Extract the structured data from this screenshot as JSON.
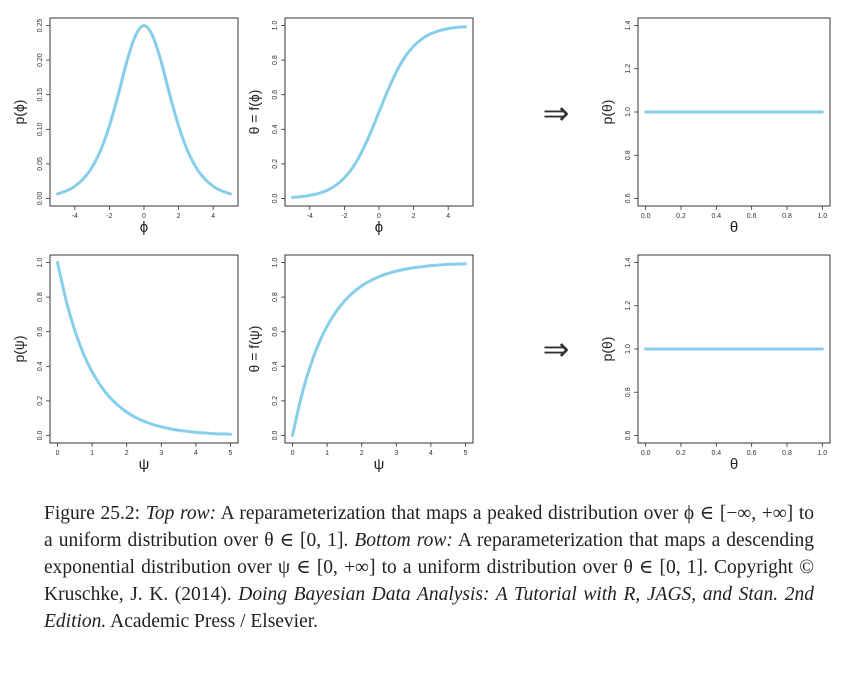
{
  "colors": {
    "curve": "#87ceeb",
    "axis": "#333333"
  },
  "arrow_symbol": "⇒",
  "chart_data": [
    {
      "type": "line",
      "id": "p-phi",
      "xlabel": "ϕ",
      "ylabel": "p(ϕ)",
      "xlim": [
        -5,
        5
      ],
      "ylim": [
        0,
        0.25
      ],
      "xticks": [
        -4,
        -2,
        0,
        2,
        4
      ],
      "xtick_labels": [
        "-4",
        "-2",
        "0",
        "2",
        "4"
      ],
      "yticks": [
        0,
        0.05,
        0.1,
        0.15,
        0.2,
        0.25
      ],
      "ytick_labels": [
        "0.00",
        "0.05",
        "0.10",
        "0.15",
        "0.20",
        "0.25"
      ],
      "series": [
        {
          "x": [
            -5,
            -4.5,
            -4,
            -3.5,
            -3,
            -2.5,
            -2,
            -1.5,
            -1,
            -0.5,
            0,
            0.5,
            1,
            1.5,
            2,
            2.5,
            3,
            3.5,
            4,
            4.5,
            5
          ],
          "y": [
            0.0066,
            0.0109,
            0.0177,
            0.0285,
            0.0452,
            0.0701,
            0.105,
            0.149,
            0.197,
            0.235,
            0.25,
            0.235,
            0.197,
            0.149,
            0.105,
            0.0701,
            0.0452,
            0.0285,
            0.0177,
            0.0109,
            0.0066
          ]
        }
      ]
    },
    {
      "type": "line",
      "id": "f-phi",
      "xlabel": "ϕ",
      "ylabel": "θ = f(ϕ)",
      "xlim": [
        -5,
        5
      ],
      "ylim": [
        0,
        1
      ],
      "xticks": [
        -4,
        -2,
        0,
        2,
        4
      ],
      "xtick_labels": [
        "-4",
        "-2",
        "0",
        "2",
        "4"
      ],
      "yticks": [
        0,
        0.2,
        0.4,
        0.6,
        0.8,
        1.0
      ],
      "ytick_labels": [
        "0.0",
        "0.2",
        "0.4",
        "0.6",
        "0.8",
        "1.0"
      ],
      "series": [
        {
          "x": [
            -5,
            -4.5,
            -4,
            -3.5,
            -3,
            -2.5,
            -2,
            -1.5,
            -1,
            -0.5,
            0,
            0.5,
            1,
            1.5,
            2,
            2.5,
            3,
            3.5,
            4,
            4.5,
            5
          ],
          "y": [
            0.0067,
            0.011,
            0.018,
            0.029,
            0.047,
            0.076,
            0.119,
            0.182,
            0.269,
            0.378,
            0.5,
            0.622,
            0.731,
            0.818,
            0.881,
            0.924,
            0.953,
            0.971,
            0.982,
            0.989,
            0.993
          ]
        }
      ]
    },
    {
      "type": "line",
      "id": "p-theta-top",
      "xlabel": "θ",
      "ylabel": "p(θ)",
      "xlim": [
        0,
        1
      ],
      "ylim": [
        0.6,
        1.4
      ],
      "xticks": [
        0,
        0.2,
        0.4,
        0.6,
        0.8,
        1.0
      ],
      "xtick_labels": [
        "0.0",
        "0.2",
        "0.4",
        "0.6",
        "0.8",
        "1.0"
      ],
      "yticks": [
        0.6,
        0.8,
        1.0,
        1.2,
        1.4
      ],
      "ytick_labels": [
        "0.6",
        "0.8",
        "1.0",
        "1.2",
        "1.4"
      ],
      "series": [
        {
          "x": [
            0,
            1
          ],
          "y": [
            1,
            1
          ]
        }
      ]
    },
    {
      "type": "line",
      "id": "p-psi",
      "xlabel": "ψ",
      "ylabel": "p(ψ)",
      "xlim": [
        0,
        5
      ],
      "ylim": [
        0,
        1
      ],
      "xticks": [
        0,
        1,
        2,
        3,
        4,
        5
      ],
      "xtick_labels": [
        "0",
        "1",
        "2",
        "3",
        "4",
        "5"
      ],
      "yticks": [
        0,
        0.2,
        0.4,
        0.6,
        0.8,
        1.0
      ],
      "ytick_labels": [
        "0.0",
        "0.2",
        "0.4",
        "0.6",
        "0.8",
        "1.0"
      ],
      "series": [
        {
          "x": [
            0,
            0.25,
            0.5,
            0.75,
            1,
            1.25,
            1.5,
            1.75,
            2,
            2.25,
            2.5,
            2.75,
            3,
            3.25,
            3.5,
            3.75,
            4,
            4.25,
            4.5,
            4.75,
            5
          ],
          "y": [
            1,
            0.779,
            0.607,
            0.472,
            0.368,
            0.287,
            0.223,
            0.174,
            0.135,
            0.105,
            0.082,
            0.064,
            0.05,
            0.039,
            0.03,
            0.024,
            0.018,
            0.014,
            0.011,
            0.009,
            0.007
          ]
        }
      ]
    },
    {
      "type": "line",
      "id": "f-psi",
      "xlabel": "ψ",
      "ylabel": "θ = f(ψ)",
      "xlim": [
        0,
        5
      ],
      "ylim": [
        0,
        1
      ],
      "xticks": [
        0,
        1,
        2,
        3,
        4,
        5
      ],
      "xtick_labels": [
        "0",
        "1",
        "2",
        "3",
        "4",
        "5"
      ],
      "yticks": [
        0,
        0.2,
        0.4,
        0.6,
        0.8,
        1.0
      ],
      "ytick_labels": [
        "0.0",
        "0.2",
        "0.4",
        "0.6",
        "0.8",
        "1.0"
      ],
      "series": [
        {
          "x": [
            0,
            0.25,
            0.5,
            0.75,
            1,
            1.25,
            1.5,
            1.75,
            2,
            2.25,
            2.5,
            2.75,
            3,
            3.25,
            3.5,
            3.75,
            4,
            4.25,
            4.5,
            4.75,
            5
          ],
          "y": [
            0,
            0.221,
            0.393,
            0.528,
            0.632,
            0.713,
            0.777,
            0.826,
            0.865,
            0.895,
            0.918,
            0.936,
            0.95,
            0.961,
            0.97,
            0.976,
            0.982,
            0.986,
            0.989,
            0.991,
            0.993
          ]
        }
      ]
    },
    {
      "type": "line",
      "id": "p-theta-bottom",
      "xlabel": "θ",
      "ylabel": "p(θ)",
      "xlim": [
        0,
        1
      ],
      "ylim": [
        0.6,
        1.4
      ],
      "xticks": [
        0,
        0.2,
        0.4,
        0.6,
        0.8,
        1.0
      ],
      "xtick_labels": [
        "0.0",
        "0.2",
        "0.4",
        "0.6",
        "0.8",
        "1.0"
      ],
      "yticks": [
        0.6,
        0.8,
        1.0,
        1.2,
        1.4
      ],
      "ytick_labels": [
        "0.6",
        "0.8",
        "1.0",
        "1.2",
        "1.4"
      ],
      "series": [
        {
          "x": [
            0,
            1
          ],
          "y": [
            1,
            1
          ]
        }
      ]
    }
  ],
  "caption": {
    "label": "Figure 25.2:",
    "top_row": "Top row:",
    "text1": "A reparameterization that maps a peaked distribution over ϕ ∈ [−∞, +∞] to a uniform distribution over θ ∈ [0, 1].",
    "bottom_row": "Bottom row:",
    "text2": "A reparameterization that maps a descending exponential distribution over ψ ∈ [0, +∞] to a uniform distribution over θ ∈ [0, 1].",
    "copyright": "Copyright © Kruschke, J. K. (2014).",
    "book": "Doing Bayesian Data Analysis: A Tutorial with R, JAGS, and Stan. 2nd Edition.",
    "publisher": "Academic Press / Elsevier."
  }
}
